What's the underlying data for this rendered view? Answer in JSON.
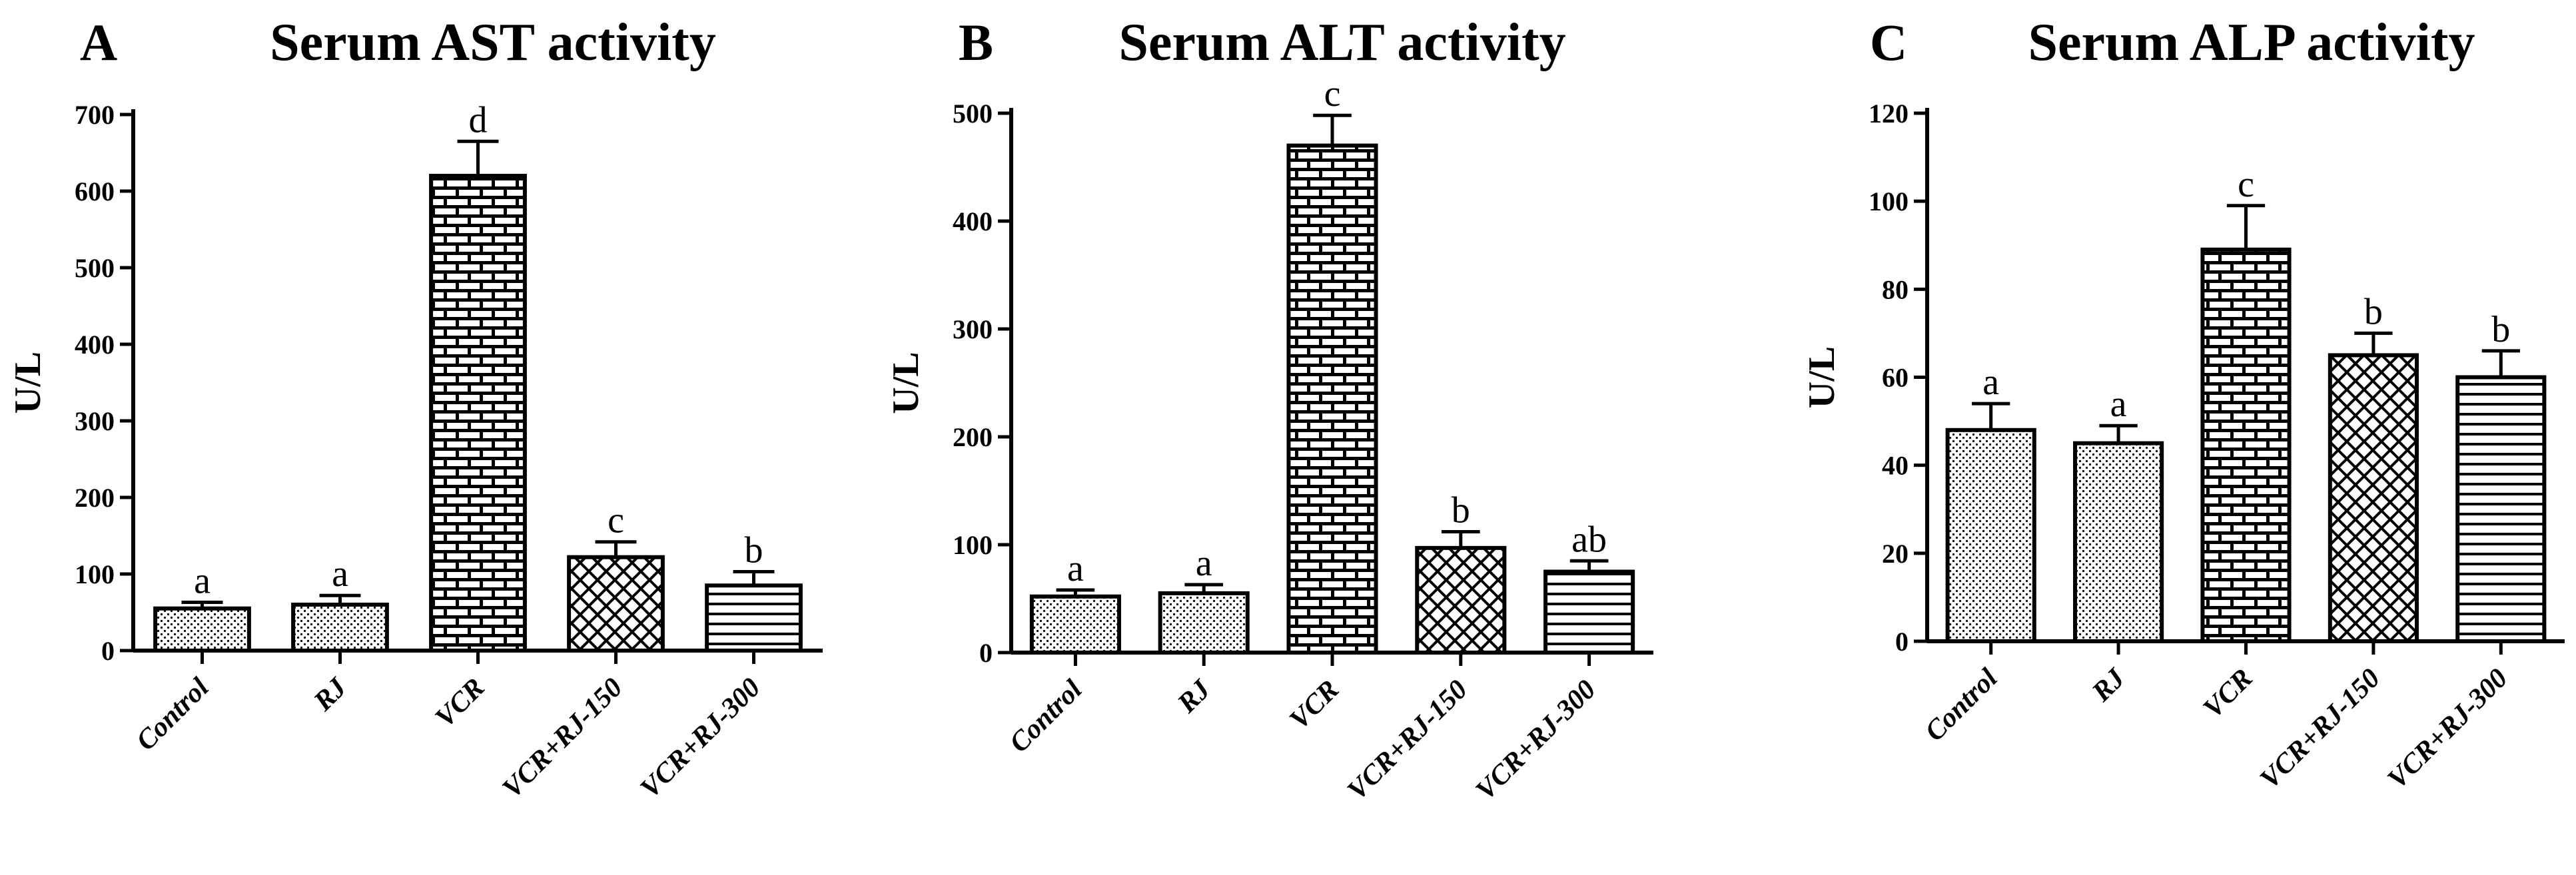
{
  "colors": {
    "ink": "#000000",
    "background": "#ffffff"
  },
  "chart_data": [
    {
      "type": "bar",
      "panel": "A",
      "title": "Serum AST activity",
      "xlabel": "",
      "ylabel": "U/L",
      "ylim": [
        0,
        700
      ],
      "yticks": [
        0,
        100,
        200,
        300,
        400,
        500,
        600,
        700
      ],
      "categories": [
        "Control",
        "RJ",
        "VCR",
        "VCR+RJ-150",
        "VCR+RJ-300"
      ],
      "values": [
        55,
        60,
        620,
        122,
        85
      ],
      "errors": [
        8,
        12,
        45,
        20,
        18
      ],
      "significance": [
        "a",
        "a",
        "d",
        "c",
        "b"
      ],
      "patterns": [
        "dots",
        "dots",
        "brick",
        "crosshatch",
        "horizontal-lines"
      ]
    },
    {
      "type": "bar",
      "panel": "B",
      "title": "Serum ALT activity",
      "xlabel": "",
      "ylabel": "U/L",
      "ylim": [
        0,
        500
      ],
      "yticks": [
        0,
        100,
        200,
        300,
        400,
        500
      ],
      "categories": [
        "Control",
        "RJ",
        "VCR",
        "VCR+RJ-150",
        "VCR+RJ-300"
      ],
      "values": [
        52,
        55,
        470,
        97,
        75
      ],
      "errors": [
        6,
        8,
        28,
        15,
        10
      ],
      "significance": [
        "a",
        "a",
        "c",
        "b",
        "ab"
      ],
      "patterns": [
        "dots",
        "dots",
        "brick",
        "crosshatch",
        "horizontal-lines"
      ]
    },
    {
      "type": "bar",
      "panel": "C",
      "title": "Serum ALP activity",
      "xlabel": "",
      "ylabel": "U/L",
      "ylim": [
        0,
        120
      ],
      "yticks": [
        0,
        20,
        40,
        60,
        80,
        100,
        120
      ],
      "categories": [
        "Control",
        "RJ",
        "VCR",
        "VCR+RJ-150",
        "VCR+RJ-300"
      ],
      "values": [
        48,
        45,
        89,
        65,
        60
      ],
      "errors": [
        6,
        4,
        10,
        5,
        6
      ],
      "significance": [
        "a",
        "a",
        "c",
        "b",
        "b"
      ],
      "patterns": [
        "dots",
        "dots",
        "brick",
        "crosshatch",
        "horizontal-lines"
      ]
    }
  ]
}
